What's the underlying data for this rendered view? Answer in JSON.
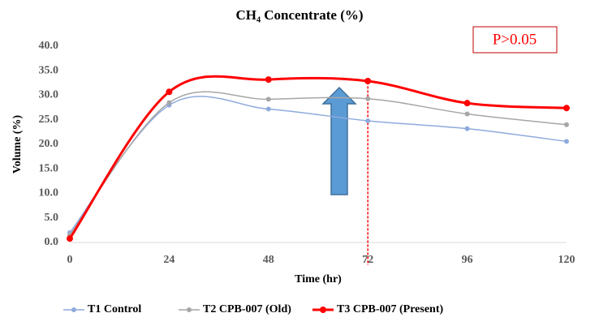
{
  "chart_data": {
    "type": "line",
    "title": "CH₄ Concentrate (%)",
    "xlabel": "Time (hr)",
    "ylabel": "Volume (%)",
    "annotation": "P>0.05",
    "x": [
      0,
      24,
      48,
      72,
      96,
      120
    ],
    "series": [
      {
        "name": "T1 Control",
        "color": "#8faadc",
        "values": [
          2.0,
          28.0,
          27.2,
          24.8,
          23.2,
          20.6
        ]
      },
      {
        "name": "T2 CPB-007 (Old)",
        "color": "#a6a6a6",
        "values": [
          1.5,
          28.5,
          29.2,
          29.3,
          26.2,
          24.0
        ]
      },
      {
        "name": "T3 CPB-007 (Present)",
        "color": "#ff0000",
        "values": [
          0.8,
          30.7,
          33.2,
          32.9,
          28.4,
          27.4
        ]
      }
    ],
    "xlim": [
      0,
      120
    ],
    "xticks": [
      0,
      24,
      48,
      72,
      96,
      120
    ],
    "ylim": [
      0,
      40
    ],
    "yticks": [
      {
        "value": 0,
        "label": "0.0"
      },
      {
        "value": 5,
        "label": "5.0"
      },
      {
        "value": 10,
        "label": "10.0"
      },
      {
        "value": 15,
        "label": "15.0"
      },
      {
        "value": 20,
        "label": "20.0"
      },
      {
        "value": 25,
        "label": "25.0"
      },
      {
        "value": 30,
        "label": "30.0"
      },
      {
        "value": 35,
        "label": "35.0"
      },
      {
        "value": 40,
        "label": "40.0"
      }
    ],
    "grid": false,
    "legend": "bottom"
  }
}
